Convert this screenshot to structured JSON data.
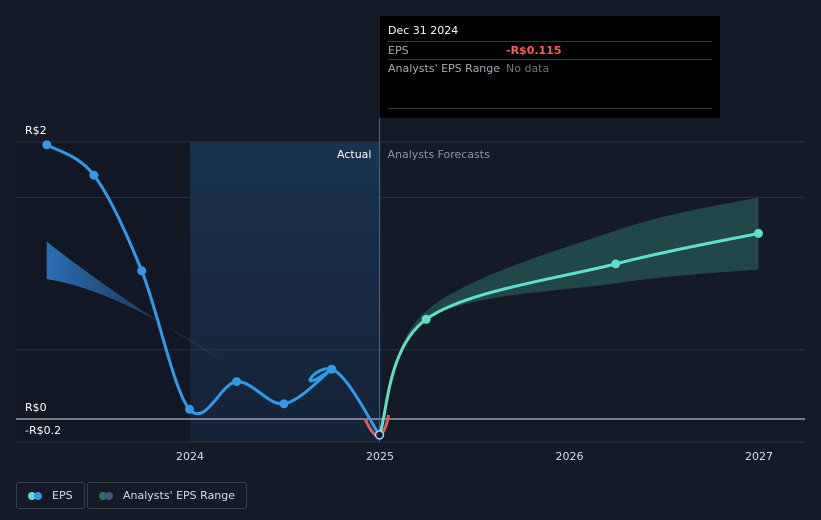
{
  "chart_data": {
    "type": "line",
    "y_tick_labels": [
      "R$2",
      "R$0",
      "-R$0.2"
    ],
    "x_tick_labels": [
      "2024",
      "2025",
      "2026",
      "2027"
    ],
    "region_labels": {
      "actual": "Actual",
      "forecast": "Analysts Forecasts"
    },
    "ylim": [
      -0.2,
      2.0
    ],
    "grid": true,
    "series": [
      {
        "name": "EPS",
        "kind": "actual",
        "color": "#2f9bea",
        "x": [
          "2023-03-31",
          "2023-06-30",
          "2023-09-30",
          "2023-12-31",
          "2024-03-31",
          "2024-06-30",
          "2024-09-30",
          "2024-12-31"
        ],
        "y": [
          1.98,
          1.76,
          1.07,
          0.07,
          0.27,
          0.11,
          0.36,
          -0.115
        ]
      },
      {
        "name": "EPS forecast",
        "kind": "forecast",
        "color": "#5ee0cf",
        "x": [
          "2024-12-31",
          "2025-03-31",
          "2026-03-31",
          "2026-12-31"
        ],
        "y": [
          -0.115,
          0.72,
          1.12,
          1.34
        ]
      }
    ],
    "forecast_range": {
      "name": "Analysts' EPS Range",
      "x": [
        "2025-01-01",
        "2025-03-31",
        "2026-03-31",
        "2026-12-31"
      ],
      "low": [
        -0.12,
        0.72,
        0.98,
        1.08
      ],
      "high": [
        -0.12,
        0.78,
        1.36,
        1.6
      ]
    },
    "past_range": {
      "x": [
        "2023-03-31",
        "2024-03-31"
      ],
      "low": [
        1.01,
        0.36
      ],
      "high": [
        1.28,
        0.36
      ]
    },
    "highlight_region": {
      "start": "2024-01-01",
      "end": "2024-12-31"
    },
    "divider_date": "2024-12-31"
  },
  "tooltip": {
    "date": "Dec 31 2024",
    "eps_label": "EPS",
    "eps_value": "-R$0.115",
    "range_label": "Analysts' EPS Range",
    "range_value": "No data"
  },
  "legend": {
    "eps_label": "EPS",
    "range_label": "Analysts' EPS Range"
  },
  "colors": {
    "background": "#151b26",
    "actual": "#2f9bea",
    "forecast": "#5ee0cf",
    "negative": "#e05a5a"
  }
}
